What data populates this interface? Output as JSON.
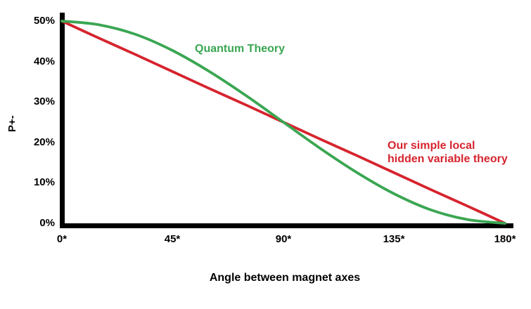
{
  "chart_data": {
    "type": "line",
    "xlabel": "Angle between magnet axes",
    "ylabel": "P+-",
    "xlim": [
      0,
      180
    ],
    "ylim": [
      0,
      50
    ],
    "grid": false,
    "legend": "inline-annotations",
    "x_ticks": [
      "0*",
      "45*",
      "90*",
      "135*",
      "180*"
    ],
    "x_tick_values": [
      0,
      45,
      90,
      135,
      180
    ],
    "y_ticks": [
      "0%",
      "10%",
      "20%",
      "30%",
      "40%",
      "50%"
    ],
    "x": [
      0,
      15,
      30,
      45,
      60,
      75,
      90,
      105,
      120,
      135,
      150,
      165,
      180
    ],
    "series": [
      {
        "name": "Quantum Theory",
        "color": "#3aa652",
        "values": [
          50,
          49.1,
          46.7,
          42.7,
          37.5,
          31.5,
          25,
          18.5,
          12.5,
          7.3,
          3.3,
          0.9,
          0
        ]
      },
      {
        "name": "Our simple local hidden variable theory",
        "color": "#d6242e",
        "values": [
          50,
          45.8,
          41.7,
          37.5,
          33.3,
          29.2,
          25,
          20.8,
          16.7,
          12.5,
          8.3,
          4.2,
          0
        ]
      }
    ]
  },
  "annotations": {
    "quantum": "Quantum Theory",
    "hidden_line1": "Our simple local",
    "hidden_line2": "hidden variable theory"
  },
  "colors": {
    "axis": "#000000",
    "background": "#ffffff",
    "quantum_green": "#3aa652",
    "hidden_red": "#d6242e"
  }
}
